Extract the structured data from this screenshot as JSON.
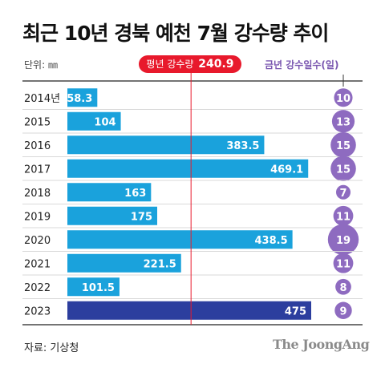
{
  "title": "최근 10년 경북 예천 7월 강수량 추이",
  "unit_label": "단위: ㎜",
  "average": {
    "label": "평년 강수량",
    "value": 240.9
  },
  "days_legend_label": "금년 강수일수(일)",
  "source": "자료: 기상청",
  "logo": "The JoongAng",
  "colors": {
    "bar": "#1aa2dc",
    "bar_highlight": "#2c3e9e",
    "circle": "#8e6bc0",
    "average_line": "#e8192c"
  },
  "chart_data": {
    "type": "bar",
    "orientation": "horizontal",
    "categories": [
      "2014년",
      "2015",
      "2016",
      "2017",
      "2018",
      "2019",
      "2020",
      "2021",
      "2022",
      "2023"
    ],
    "values": [
      58.3,
      104,
      383.5,
      469.1,
      163,
      175,
      438.5,
      221.5,
      101.5,
      475
    ],
    "value_labels": [
      "58.3",
      "104",
      "383.5",
      "469.1",
      "163",
      "175",
      "438.5",
      "221.5",
      "101.5",
      "475"
    ],
    "rain_days": [
      10,
      13,
      15,
      15,
      7,
      11,
      19,
      11,
      8,
      9
    ],
    "highlight_index": 9,
    "xlim": [
      0,
      475
    ],
    "grid": false
  }
}
